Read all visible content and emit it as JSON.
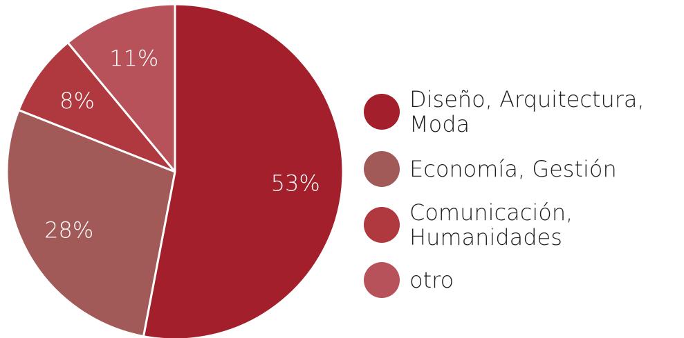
{
  "chart_data": {
    "type": "pie",
    "title": "",
    "categories": [
      "Diseño, Arquitectura, Moda",
      "Economía, Gestión",
      "Comunicación, Humanidades",
      "otro"
    ],
    "values": [
      53,
      28,
      8,
      11
    ],
    "value_labels": [
      "53%",
      "28%",
      "8%",
      "11%"
    ],
    "colors": [
      "#a21f2b",
      "#a25a58",
      "#b0383f",
      "#b8525a"
    ],
    "start_angle_deg": 0,
    "direction": "clockwise",
    "legend_position": "right"
  },
  "legend": {
    "items": [
      {
        "label": "Diseño, Arquitectura,\nModa",
        "color": "#a21f2b"
      },
      {
        "label": "Economía, Gestión",
        "color": "#a25a58"
      },
      {
        "label": "Comunicación,\nHumanidades",
        "color": "#b0383f"
      },
      {
        "label": "otro",
        "color": "#b8525a"
      }
    ]
  }
}
